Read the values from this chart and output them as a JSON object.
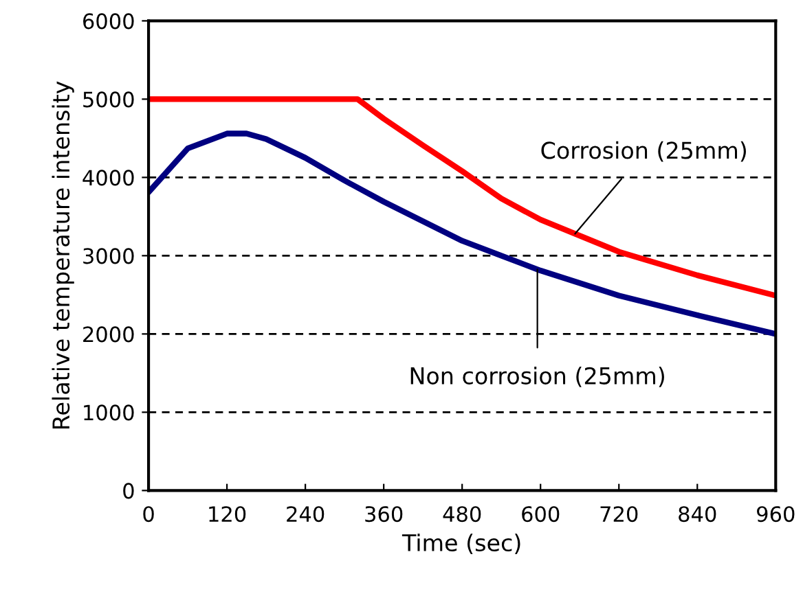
{
  "chart_data": {
    "type": "line",
    "xlabel": "Time (sec)",
    "ylabel": "Relative temperature intensity",
    "xlim": [
      0,
      960
    ],
    "xticks": [
      0,
      120,
      240,
      360,
      480,
      600,
      720,
      840,
      960
    ],
    "ylim": [
      0,
      6000
    ],
    "yticks": [
      0,
      1000,
      2000,
      3000,
      4000,
      5000,
      6000
    ],
    "grid": "y",
    "legend": false,
    "marker": "none",
    "line_style": "solid",
    "series": [
      {
        "name": "Corrosion (25mm)",
        "color": "#ff0000",
        "x": [
          0,
          320,
          360,
          420,
          480,
          540,
          600,
          720,
          840,
          960
        ],
        "values": [
          5000,
          5000,
          4750,
          4410,
          4080,
          3730,
          3460,
          3050,
          2750,
          2490
        ]
      },
      {
        "name": "Non corrosion (25mm)",
        "color": "#000080",
        "x": [
          0,
          60,
          120,
          150,
          180,
          240,
          300,
          360,
          420,
          480,
          540,
          600,
          720,
          840,
          960
        ],
        "values": [
          3810,
          4370,
          4560,
          4560,
          4490,
          4250,
          3960,
          3690,
          3440,
          3190,
          3000,
          2810,
          2490,
          2240,
          2000
        ]
      }
    ]
  }
}
